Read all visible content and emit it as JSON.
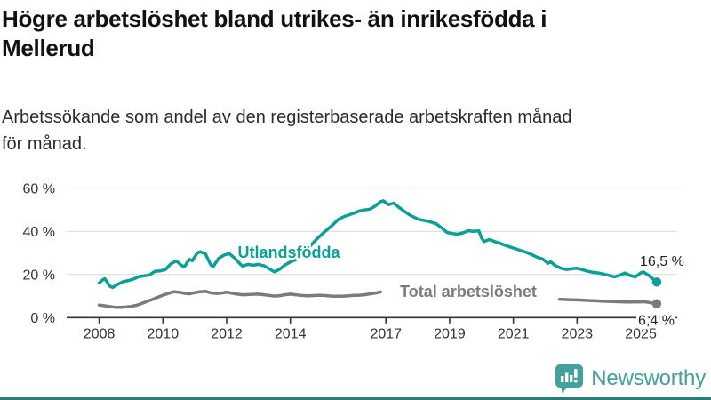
{
  "header": {
    "title_lines": [
      "Högre arbetslöshet bland utrikes- än inrikesfödda i",
      "Mellerud"
    ],
    "subtitle_lines": [
      "Arbetssökande som andel av den registerbaserade arbetskraften månad",
      "för månad."
    ]
  },
  "colors": {
    "foreign_born_line": "#0aa096",
    "total_line": "#7b7b7e",
    "logo_teal": "#43a09c",
    "footer_bar": "#2a7d78",
    "grid": "#d9d9d9",
    "axis": "#333333"
  },
  "chart_data": {
    "type": "line",
    "title": "Högre arbetslöshet bland utrikes- än inrikesfödda i Mellerud",
    "subtitle": "Arbetssökande som andel av den registerbaserade arbetskraften månad för månad.",
    "xlabel": "",
    "ylabel": "",
    "ylim": [
      0,
      62
    ],
    "xlim": [
      2007,
      2026.1
    ],
    "grid": "horizontal",
    "y_ticks": [
      {
        "value": 0,
        "label": "0 %"
      },
      {
        "value": 20,
        "label": "20 %"
      },
      {
        "value": 40,
        "label": "40 %"
      },
      {
        "value": 60,
        "label": "60 %"
      }
    ],
    "x_ticks": [
      {
        "value": 2008,
        "label": "2008"
      },
      {
        "value": 2010,
        "label": "2010"
      },
      {
        "value": 2012,
        "label": "2012"
      },
      {
        "value": 2014,
        "label": "2014"
      },
      {
        "value": 2017,
        "label": "2017"
      },
      {
        "value": 2019,
        "label": "2019"
      },
      {
        "value": 2021,
        "label": "2021"
      },
      {
        "value": 2023,
        "label": "2023"
      },
      {
        "value": 2025,
        "label": "2025"
      }
    ],
    "series": [
      {
        "name": "Utlandsfödda",
        "color": "#0aa096",
        "end_label": "16,5 %",
        "end_value": 16.5,
        "segments": [
          [
            [
              2008.0,
              16.1
            ],
            [
              2008.08,
              17.2
            ],
            [
              2008.17,
              18.1
            ],
            [
              2008.25,
              16.5
            ],
            [
              2008.33,
              14.6
            ],
            [
              2008.42,
              14.0
            ],
            [
              2008.58,
              15.4
            ],
            [
              2008.75,
              16.7
            ],
            [
              2008.92,
              17.2
            ],
            [
              2009.08,
              17.9
            ],
            [
              2009.25,
              19.0
            ],
            [
              2009.42,
              19.4
            ],
            [
              2009.58,
              19.8
            ],
            [
              2009.75,
              21.5
            ],
            [
              2009.92,
              21.7
            ],
            [
              2010.08,
              22.3
            ],
            [
              2010.25,
              25.0
            ],
            [
              2010.42,
              26.3
            ],
            [
              2010.58,
              24.2
            ],
            [
              2010.67,
              23.6
            ],
            [
              2010.83,
              27.0
            ],
            [
              2010.92,
              26.4
            ],
            [
              2011.08,
              30.0
            ],
            [
              2011.17,
              30.5
            ],
            [
              2011.33,
              29.6
            ],
            [
              2011.5,
              24.5
            ],
            [
              2011.58,
              23.7
            ],
            [
              2011.75,
              27.5
            ],
            [
              2011.92,
              29.0
            ],
            [
              2012.08,
              29.7
            ],
            [
              2012.25,
              27.6
            ],
            [
              2012.42,
              24.9
            ],
            [
              2012.5,
              23.9
            ],
            [
              2012.67,
              24.7
            ],
            [
              2012.83,
              24.3
            ],
            [
              2013.0,
              24.7
            ],
            [
              2013.17,
              24.1
            ],
            [
              2013.33,
              22.7
            ],
            [
              2013.5,
              21.2
            ],
            [
              2013.67,
              22.5
            ],
            [
              2013.83,
              24.4
            ],
            [
              2014.0,
              25.8
            ],
            [
              2014.17,
              26.9
            ],
            [
              2014.33,
              28.3
            ],
            [
              2014.5,
              31.0
            ],
            [
              2014.67,
              34.0
            ],
            [
              2014.83,
              36.5
            ],
            [
              2015.0,
              38.8
            ],
            [
              2015.17,
              41.0
            ],
            [
              2015.33,
              43.0
            ],
            [
              2015.5,
              45.5
            ],
            [
              2015.67,
              46.8
            ],
            [
              2015.83,
              47.6
            ],
            [
              2016.0,
              48.5
            ],
            [
              2016.17,
              49.5
            ],
            [
              2016.33,
              50.0
            ],
            [
              2016.5,
              50.3
            ],
            [
              2016.67,
              51.8
            ],
            [
              2016.83,
              53.8
            ],
            [
              2016.92,
              54.2
            ],
            [
              2017.08,
              52.4
            ],
            [
              2017.25,
              53.1
            ],
            [
              2017.42,
              51.0
            ],
            [
              2017.58,
              49.3
            ],
            [
              2017.75,
              47.6
            ],
            [
              2017.92,
              46.3
            ],
            [
              2018.08,
              45.4
            ],
            [
              2018.25,
              44.9
            ],
            [
              2018.42,
              44.3
            ],
            [
              2018.58,
              43.5
            ],
            [
              2018.75,
              41.6
            ],
            [
              2018.92,
              39.5
            ],
            [
              2019.08,
              39.0
            ],
            [
              2019.25,
              38.7
            ],
            [
              2019.42,
              39.3
            ],
            [
              2019.58,
              40.3
            ],
            [
              2019.75,
              40.0
            ],
            [
              2019.92,
              40.2
            ],
            [
              2020.0,
              37.0
            ],
            [
              2020.08,
              35.3
            ],
            [
              2020.25,
              36.2
            ],
            [
              2020.42,
              35.2
            ],
            [
              2020.58,
              34.5
            ],
            [
              2020.75,
              33.5
            ],
            [
              2020.92,
              32.6
            ],
            [
              2021.08,
              31.9
            ],
            [
              2021.25,
              31.0
            ],
            [
              2021.42,
              30.2
            ],
            [
              2021.58,
              29.2
            ],
            [
              2021.75,
              28.0
            ],
            [
              2021.92,
              27.2
            ],
            [
              2022.08,
              25.2
            ],
            [
              2022.17,
              25.9
            ],
            [
              2022.33,
              24.0
            ],
            [
              2022.5,
              22.9
            ],
            [
              2022.67,
              22.3
            ],
            [
              2022.83,
              22.7
            ],
            [
              2023.0,
              22.9
            ],
            [
              2023.17,
              22.2
            ],
            [
              2023.33,
              21.5
            ],
            [
              2023.5,
              21.0
            ],
            [
              2023.67,
              20.7
            ],
            [
              2023.83,
              20.2
            ],
            [
              2024.0,
              19.6
            ],
            [
              2024.17,
              18.9
            ],
            [
              2024.33,
              19.6
            ],
            [
              2024.5,
              20.7
            ],
            [
              2024.67,
              19.5
            ],
            [
              2024.83,
              18.9
            ],
            [
              2025.0,
              20.8
            ],
            [
              2025.08,
              21.2
            ],
            [
              2025.25,
              19.6
            ],
            [
              2025.42,
              17.4
            ],
            [
              2025.5,
              16.5
            ]
          ]
        ]
      },
      {
        "name": "Total arbetslöshet",
        "color": "#7b7b7e",
        "end_label": "6,4 %",
        "end_value": 6.4,
        "segments": [
          [
            [
              2008.0,
              5.8
            ],
            [
              2008.17,
              5.5
            ],
            [
              2008.33,
              5.1
            ],
            [
              2008.5,
              4.8
            ],
            [
              2008.67,
              4.8
            ],
            [
              2008.83,
              4.9
            ],
            [
              2009.0,
              5.2
            ],
            [
              2009.17,
              5.7
            ],
            [
              2009.33,
              6.5
            ],
            [
              2009.5,
              7.5
            ],
            [
              2009.67,
              8.4
            ],
            [
              2009.83,
              9.4
            ],
            [
              2010.0,
              10.4
            ],
            [
              2010.17,
              11.2
            ],
            [
              2010.33,
              12.0
            ],
            [
              2010.5,
              11.8
            ],
            [
              2010.67,
              11.3
            ],
            [
              2010.83,
              11.0
            ],
            [
              2011.0,
              11.6
            ],
            [
              2011.17,
              12.0
            ],
            [
              2011.33,
              12.2
            ],
            [
              2011.5,
              11.5
            ],
            [
              2011.67,
              11.2
            ],
            [
              2011.83,
              11.4
            ],
            [
              2012.0,
              11.8
            ],
            [
              2012.17,
              11.3
            ],
            [
              2012.33,
              10.9
            ],
            [
              2012.5,
              10.6
            ],
            [
              2012.67,
              10.7
            ],
            [
              2012.83,
              10.8
            ],
            [
              2013.0,
              10.9
            ],
            [
              2013.17,
              10.6
            ],
            [
              2013.33,
              10.3
            ],
            [
              2013.5,
              10.0
            ],
            [
              2013.67,
              10.2
            ],
            [
              2013.83,
              10.6
            ],
            [
              2014.0,
              10.9
            ],
            [
              2014.17,
              10.6
            ],
            [
              2014.33,
              10.3
            ],
            [
              2014.5,
              10.1
            ],
            [
              2014.67,
              10.2
            ],
            [
              2014.83,
              10.3
            ],
            [
              2015.0,
              10.3
            ],
            [
              2015.17,
              10.1
            ],
            [
              2015.33,
              9.9
            ],
            [
              2015.5,
              9.9
            ],
            [
              2015.67,
              10.0
            ],
            [
              2015.83,
              10.1
            ],
            [
              2016.0,
              10.3
            ],
            [
              2016.17,
              10.4
            ],
            [
              2016.33,
              10.6
            ],
            [
              2016.5,
              11.0
            ],
            [
              2016.67,
              11.4
            ],
            [
              2016.83,
              11.9
            ]
          ],
          [
            [
              2022.45,
              8.5
            ],
            [
              2022.6,
              8.4
            ],
            [
              2022.8,
              8.3
            ],
            [
              2023.0,
              8.2
            ],
            [
              2023.2,
              8.1
            ],
            [
              2023.4,
              7.9
            ],
            [
              2023.6,
              7.8
            ],
            [
              2023.8,
              7.6
            ],
            [
              2024.0,
              7.5
            ],
            [
              2024.2,
              7.4
            ],
            [
              2024.4,
              7.3
            ],
            [
              2024.6,
              7.2
            ],
            [
              2024.8,
              7.2
            ],
            [
              2025.0,
              7.3
            ],
            [
              2025.1,
              7.4
            ],
            [
              2025.3,
              6.9
            ],
            [
              2025.5,
              6.4
            ]
          ]
        ]
      }
    ],
    "legend_position": "inline-labels"
  },
  "logo": {
    "text": "Newsworthy"
  }
}
